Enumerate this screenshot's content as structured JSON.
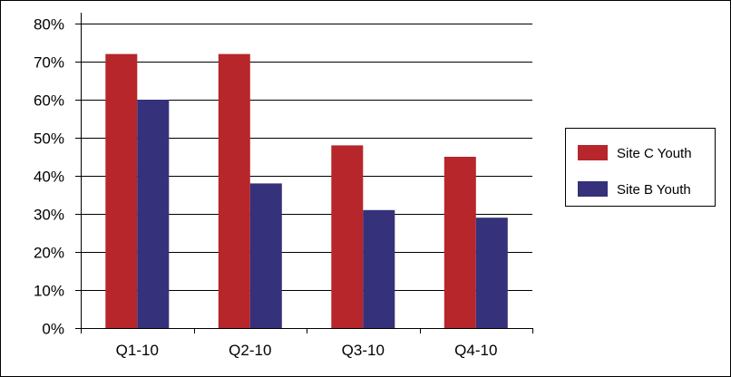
{
  "chart_data": {
    "type": "bar",
    "categories": [
      "Q1-10",
      "Q2-10",
      "Q3-10",
      "Q4-10"
    ],
    "series": [
      {
        "name": "Site C Youth",
        "color": "#b6262b",
        "values": [
          72,
          72,
          48,
          45
        ]
      },
      {
        "name": "Site B Youth",
        "color": "#35317a",
        "values": [
          60,
          38,
          31,
          29
        ]
      }
    ],
    "ylim": [
      0,
      80
    ],
    "yticks": [
      0,
      10,
      20,
      30,
      40,
      50,
      60,
      70,
      80
    ],
    "ytick_labels": [
      "0%",
      "10%",
      "20%",
      "30%",
      "40%",
      "50%",
      "60%",
      "70%",
      "80%"
    ],
    "grid": true,
    "legend": "right",
    "title": "",
    "xlabel": "",
    "ylabel": ""
  }
}
